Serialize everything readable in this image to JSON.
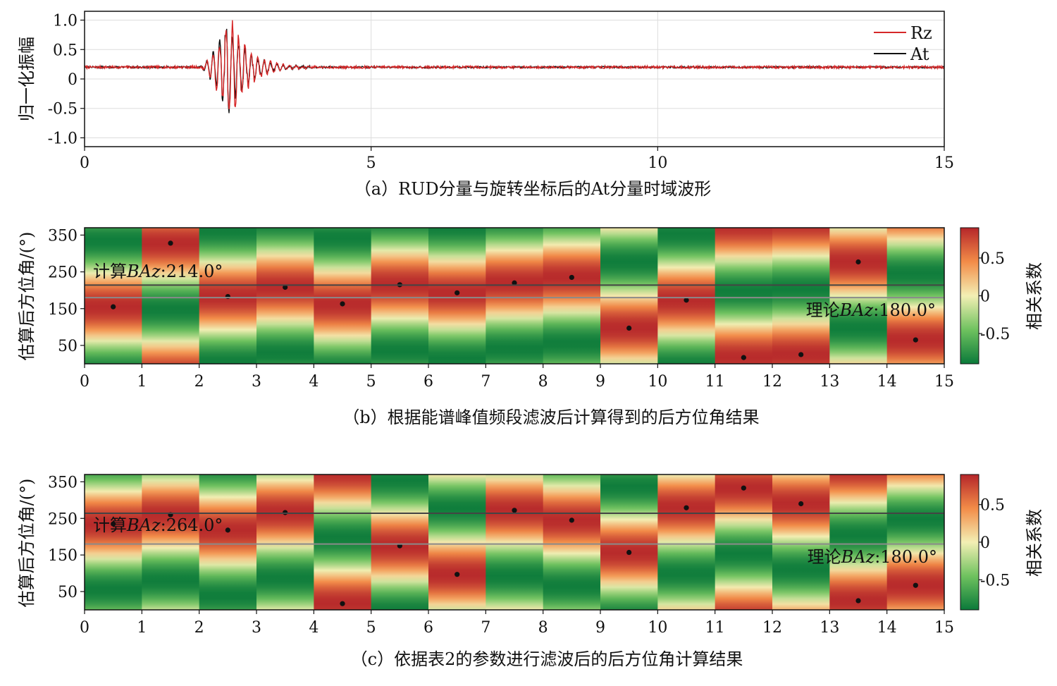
{
  "figure": {
    "captions": {
      "a": "（a）RUD分量与旋转坐标后的At分量时域波形",
      "b": "（b）根据能谱峰值频段滤波后计算得到的后方位角结果",
      "c": "（c）依据表2的参数进行滤波后的后方位角计算结果"
    }
  },
  "chart_data": [
    {
      "id": "a",
      "type": "line",
      "xlim": [
        0,
        15
      ],
      "ylim": [
        -1.15,
        1.15
      ],
      "x_ticks": [
        "0",
        "5",
        "10",
        "15"
      ],
      "y_ticks": [
        "1.0",
        "0.5",
        "0",
        "-0.5",
        "-1.0"
      ],
      "y_tick_values": [
        1.0,
        0.5,
        0,
        -0.5,
        -1.0
      ],
      "x_tick_values": [
        0,
        5,
        10,
        15
      ],
      "ylabel": "归一化振幅",
      "xlabel": "",
      "grid": true,
      "legend_position": "top-right",
      "series": [
        {
          "name": "Rz",
          "color": "#d62728",
          "baseline": 0.2,
          "noise": 0.022,
          "burst_start": 2.0,
          "burst_peak": 2.55,
          "burst_end": 4.2,
          "peak_max": 1.1,
          "peak_min": -0.78,
          "seed": 7
        },
        {
          "name": "At",
          "color": "#111111",
          "baseline": 0.2,
          "noise": 0.015,
          "burst_start": 2.0,
          "burst_peak": 2.5,
          "burst_end": 4.0,
          "peak_max": 1.05,
          "peak_min": -0.72,
          "seed": 13
        }
      ]
    },
    {
      "id": "b",
      "type": "heatmap",
      "xlim": [
        0,
        15
      ],
      "ylim": [
        0,
        370
      ],
      "x_ticks": [
        "0",
        "1",
        "2",
        "3",
        "4",
        "5",
        "6",
        "7",
        "8",
        "9",
        "10",
        "11",
        "12",
        "13",
        "14",
        "15"
      ],
      "y_ticks": [
        "350",
        "250",
        "150",
        "50"
      ],
      "y_tick_values": [
        350,
        250,
        150,
        50
      ],
      "ylabel": "估算后方位角/(°)",
      "colorbar_label": "相关系数",
      "colorbar_ticks": [
        "0.5",
        "0",
        "-0.5"
      ],
      "colorbar_tick_values": [
        0.5,
        0,
        -0.5
      ],
      "color_range": [
        -0.9,
        0.9
      ],
      "columns_peak_baz": [
        155,
        328,
        183,
        208,
        163,
        215,
        193,
        220,
        235,
        97,
        173,
        17,
        25,
        277,
        65
      ],
      "calculated_baz": 214.0,
      "theoretical_baz": 180.0,
      "calculated_label": "计算",
      "theoretical_label": "理论",
      "baz_symbol": "BAz",
      "calculated_value_text": ":214.0°",
      "theoretical_value_text": ":180.0°"
    },
    {
      "id": "c",
      "type": "heatmap",
      "xlim": [
        0,
        15
      ],
      "ylim": [
        0,
        370
      ],
      "x_ticks": [
        "0",
        "1",
        "2",
        "3",
        "4",
        "5",
        "6",
        "7",
        "8",
        "9",
        "10",
        "11",
        "12",
        "13",
        "14",
        "15"
      ],
      "y_ticks": [
        "350",
        "250",
        "150",
        "50"
      ],
      "y_tick_values": [
        350,
        250,
        150,
        50
      ],
      "ylabel": "估算后方位角/(°)",
      "colorbar_label": "相关系数",
      "colorbar_ticks": [
        "0.5",
        "0",
        "-0.5"
      ],
      "colorbar_tick_values": [
        0.5,
        0,
        -0.5
      ],
      "color_range": [
        -0.9,
        0.9
      ],
      "columns_peak_baz": [
        235,
        260,
        218,
        266,
        17,
        175,
        97,
        272,
        245,
        157,
        279,
        333,
        290,
        25,
        67
      ],
      "calculated_baz": 264.0,
      "theoretical_baz": 180.0,
      "calculated_label": "计算",
      "theoretical_label": "理论",
      "baz_symbol": "BAz",
      "calculated_value_text": ":264.0°",
      "theoretical_value_text": ":180.0°"
    }
  ]
}
